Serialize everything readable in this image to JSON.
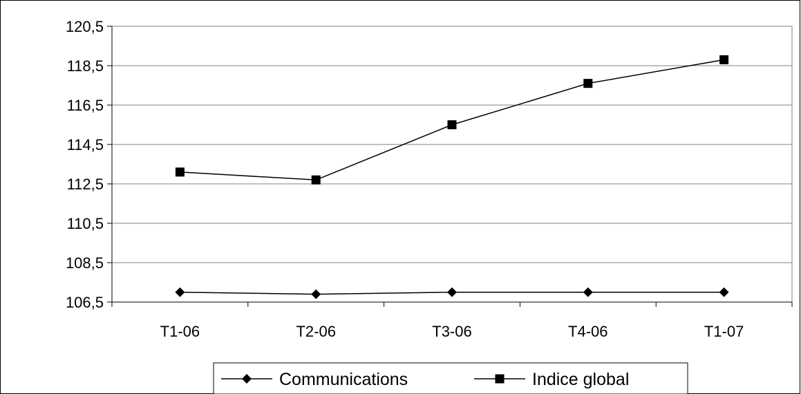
{
  "chart_data": {
    "type": "line",
    "categories": [
      "T1-06",
      "T2-06",
      "T3-06",
      "T4-06",
      "T1-07"
    ],
    "series": [
      {
        "name": "Communications",
        "values": [
          107.0,
          106.9,
          107.0,
          107.0,
          107.0
        ],
        "marker": "diamond",
        "color": "#000000"
      },
      {
        "name": "Indice global",
        "values": [
          113.1,
          112.7,
          115.5,
          117.6,
          118.8
        ],
        "marker": "square",
        "color": "#000000"
      }
    ],
    "yticks": [
      "106,5",
      "108,5",
      "110,5",
      "112,5",
      "114,5",
      "116,5",
      "118,5",
      "120,5"
    ],
    "ylim": [
      106.5,
      120.5
    ],
    "grid": true,
    "legend_position": "bottom",
    "title": "",
    "xlabel": "",
    "ylabel": ""
  }
}
